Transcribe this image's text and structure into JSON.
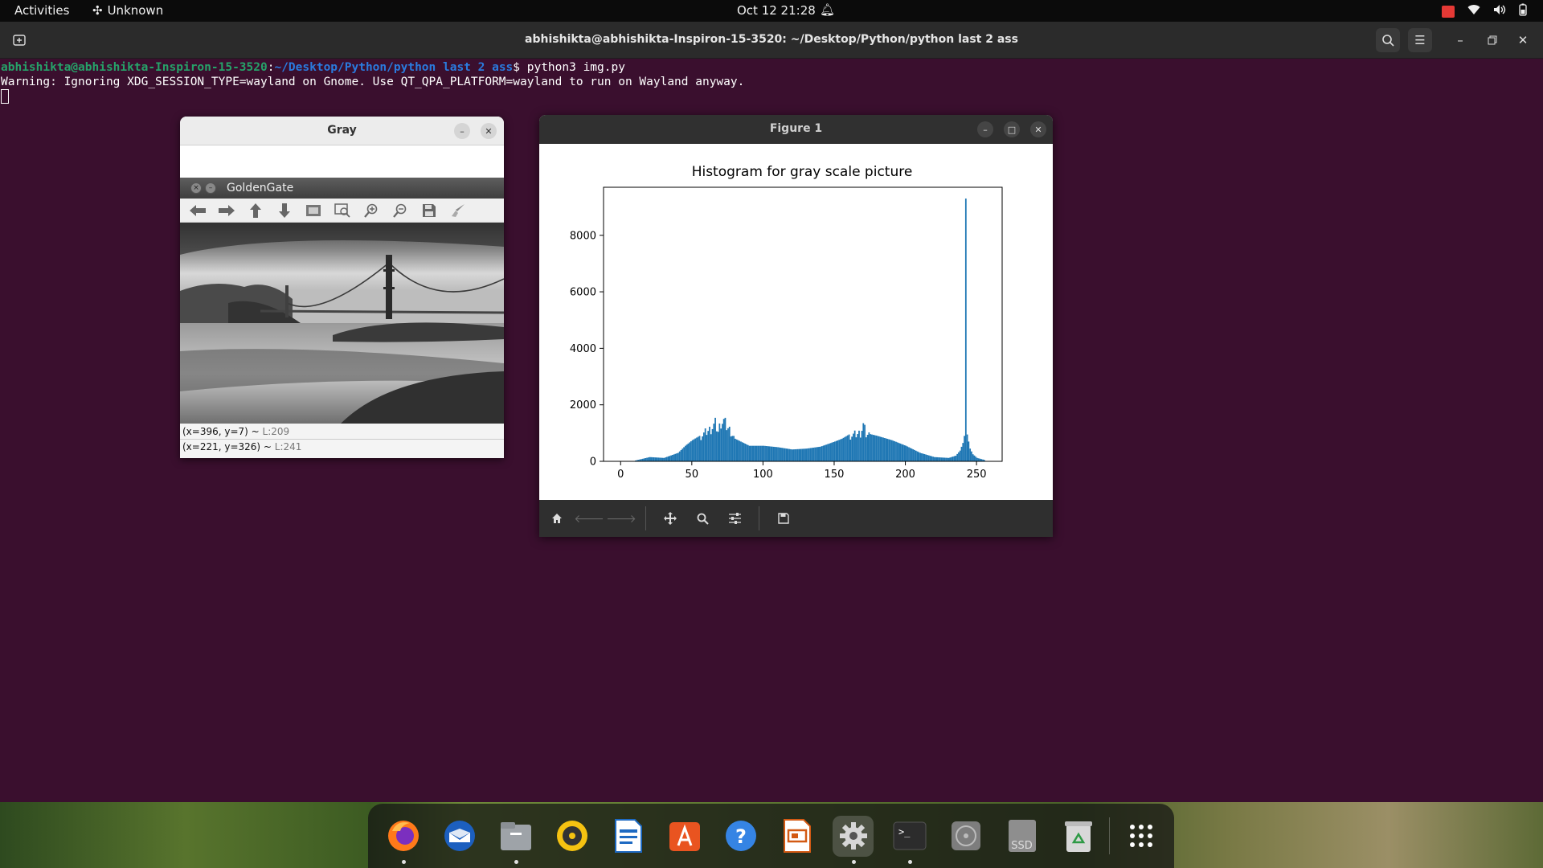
{
  "topbar": {
    "activities": "Activities",
    "app_name": "Unknown",
    "clock": "Oct 12  21:28"
  },
  "terminal": {
    "title": "abhishikta@abhishikta-Inspiron-15-3520: ~/Desktop/Python/python last 2 ass",
    "prompt_user": "abhishikta@abhishikta-Inspiron-15-3520",
    "prompt_sep": ":",
    "prompt_path": "~/Desktop/Python/python last 2 ass",
    "prompt_cmd": "$ python3 img.py",
    "warning": "Warning: Ignoring XDG_SESSION_TYPE=wayland on Gnome. Use QT_QPA_PLATFORM=wayland to run on Wayland anyway."
  },
  "gray_window": {
    "title": "Gray",
    "inner_title": "GoldenGate",
    "status1_main": "(x=396, y=7) ~ ",
    "status1_dim": "L:209",
    "status2_main": "(x=221, y=326) ~ ",
    "status2_dim": "L:241"
  },
  "figure_window": {
    "title": "Figure 1"
  },
  "colors": {
    "bars": "#1f77b4",
    "terminal_bg": "#3a0f2e",
    "prompt_user": "#26a269",
    "prompt_path": "#2a7bde"
  },
  "chart_data": {
    "type": "bar",
    "title": "Histogram for gray scale picture",
    "xlabel": "",
    "ylabel": "",
    "xlim": [
      -12,
      268
    ],
    "ylim": [
      0,
      9700
    ],
    "xticks": [
      0,
      50,
      100,
      150,
      200,
      250
    ],
    "yticks": [
      0,
      2000,
      4000,
      6000,
      8000
    ],
    "bin_width": 1,
    "grid": false,
    "legend": "none",
    "profile_points": [
      [
        10,
        30
      ],
      [
        20,
        150
      ],
      [
        30,
        120
      ],
      [
        40,
        300
      ],
      [
        45,
        550
      ],
      [
        50,
        750
      ],
      [
        55,
        900
      ],
      [
        60,
        1100
      ],
      [
        63,
        1200
      ],
      [
        66,
        1400
      ],
      [
        68,
        1100
      ],
      [
        70,
        1450
      ],
      [
        72,
        1500
      ],
      [
        74,
        1300
      ],
      [
        77,
        1100
      ],
      [
        80,
        800
      ],
      [
        90,
        550
      ],
      [
        100,
        550
      ],
      [
        110,
        500
      ],
      [
        120,
        420
      ],
      [
        130,
        450
      ],
      [
        140,
        520
      ],
      [
        150,
        700
      ],
      [
        155,
        800
      ],
      [
        160,
        950
      ],
      [
        165,
        1000
      ],
      [
        168,
        1050
      ],
      [
        170,
        1350
      ],
      [
        172,
        1000
      ],
      [
        180,
        900
      ],
      [
        190,
        750
      ],
      [
        200,
        550
      ],
      [
        210,
        300
      ],
      [
        220,
        150
      ],
      [
        230,
        120
      ],
      [
        235,
        200
      ],
      [
        238,
        380
      ],
      [
        240,
        650
      ],
      [
        241,
        900
      ],
      [
        242,
        9300
      ],
      [
        243,
        950
      ],
      [
        244,
        700
      ],
      [
        245,
        450
      ],
      [
        247,
        250
      ],
      [
        250,
        120
      ],
      [
        255,
        50
      ]
    ]
  },
  "dock": {
    "ssd_label": "SSD"
  }
}
